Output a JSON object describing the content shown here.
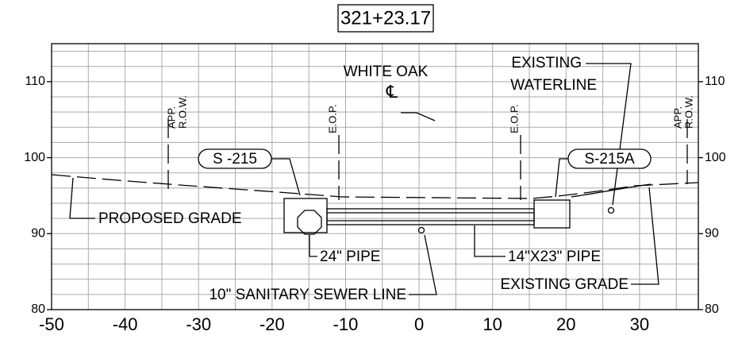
{
  "station": "321+23.17",
  "axes": {
    "xlim": [
      -50,
      38
    ],
    "ylim": [
      80,
      115
    ],
    "xticks": [
      -50,
      -40,
      -30,
      -20,
      -10,
      0,
      10,
      20,
      30
    ],
    "yticks": [
      80,
      90,
      100,
      110
    ],
    "x_grid_step": 5,
    "y_grid_step": 2
  },
  "labels": {
    "road": "WHITE OAK",
    "centerline": "℄",
    "waterline_1": "EXISTING",
    "waterline_2": "WATERLINE",
    "row_left_1": "APP.",
    "row_left_2": "R.O.W.",
    "row_right_1": "APP.",
    "row_right_2": "R.O.W.",
    "eop_left": "E.O.P.",
    "eop_right": "E.O.P.",
    "structure_left": "S -215",
    "structure_right": "S-215A",
    "proposed_grade": "PROPOSED GRADE",
    "pipe_24": "24\" PIPE",
    "sewer": "10\" SANITARY SEWER LINE",
    "pipe_box": "14\"X23\" PIPE",
    "existing_grade": "EXISTING GRADE"
  }
}
